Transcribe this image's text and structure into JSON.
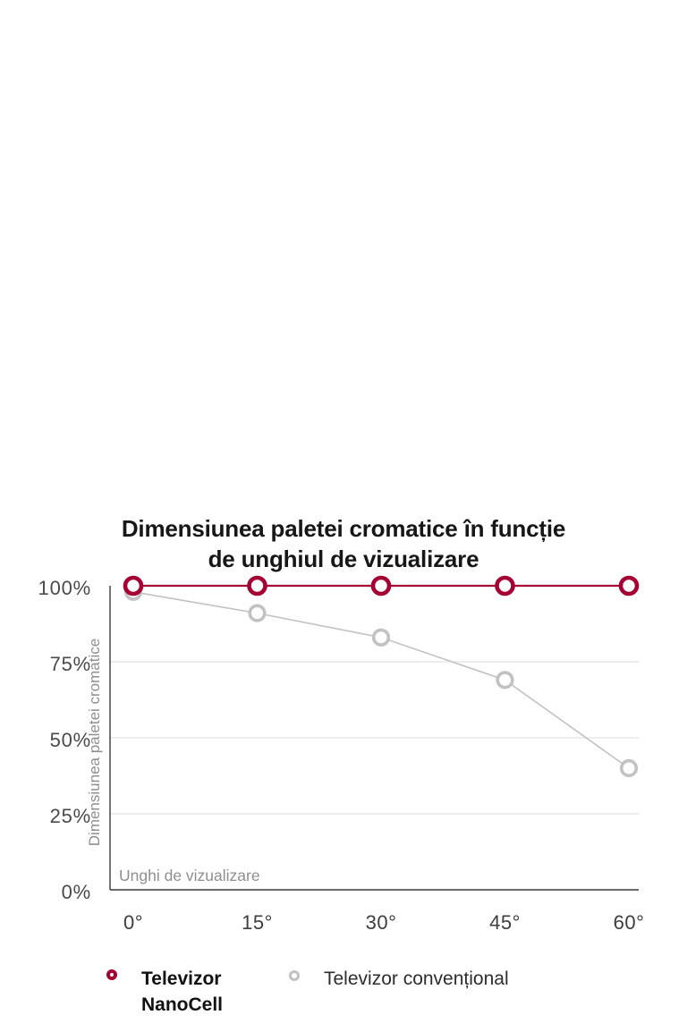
{
  "chart_data": {
    "type": "line",
    "title": "Dimensiunea paletei cromatice în funcție\nde unghiul de vizualizare",
    "ylabel": "Dimensiunea paletei cromatice",
    "xlabel": "Unghi de vizualizare",
    "categories": [
      "0°",
      "15°",
      "30°",
      "45°",
      "60°"
    ],
    "ylim": [
      0,
      100
    ],
    "yticks": [
      {
        "value": 100,
        "label": "100%"
      },
      {
        "value": 75,
        "label": "75%"
      },
      {
        "value": 50,
        "label": "50%"
      },
      {
        "value": 25,
        "label": "25%"
      },
      {
        "value": 0,
        "label": "0%"
      }
    ],
    "gridline_values": [
      75,
      50,
      25
    ],
    "grid": "horizontal",
    "legend_position": "bottom",
    "series": [
      {
        "name": "Televizor NanoCell",
        "color": "#a50034",
        "values": [
          100,
          100,
          100,
          100,
          100
        ]
      },
      {
        "name": "Televizor convențional",
        "color": "#c2c2c2",
        "values": [
          98,
          91,
          83,
          69,
          40
        ]
      }
    ],
    "colors": {
      "accent_red": "#a50034",
      "series_gray": "#c2c2c2",
      "gridline": "#e2e2e2",
      "axis": "#3a3a3a",
      "tick_text": "#4a4a4a",
      "muted_text": "#8f8f8f"
    }
  }
}
